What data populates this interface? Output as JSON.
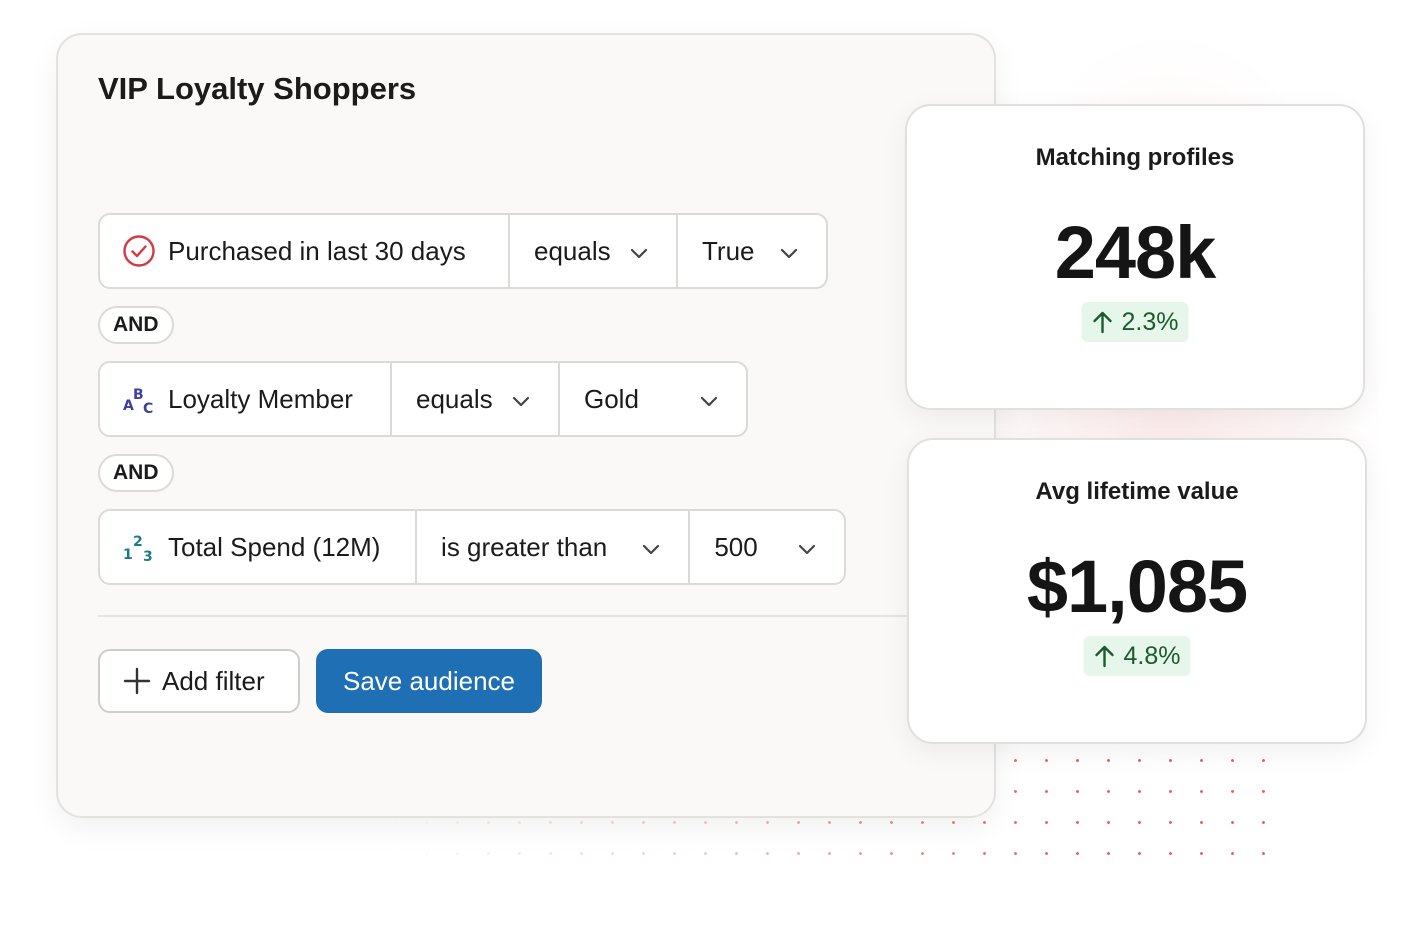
{
  "audience": {
    "title": "VIP Loyalty Shoppers",
    "filters": [
      {
        "field": "Purchased in last 30 days",
        "field_type_icon": "check-circle-icon",
        "operator": "equals",
        "value": "True"
      },
      {
        "field": "Loyalty Member",
        "field_type_icon": "text-type-icon",
        "operator": "equals",
        "value": "Gold"
      },
      {
        "field": "Total Spend (12M)",
        "field_type_icon": "number-type-icon",
        "operator": "is greater than",
        "value": "500"
      }
    ],
    "connectors": [
      "AND",
      "AND"
    ],
    "add_filter_label": "Add filter",
    "save_label": "Save audience"
  },
  "metrics": [
    {
      "title": "Matching profiles",
      "value": "248k",
      "delta": "2.3%",
      "delta_direction": "up"
    },
    {
      "title": "Avg lifetime value",
      "value": "$1,085",
      "delta": "4.8%",
      "delta_direction": "up"
    }
  ],
  "colors": {
    "accent": "#1f6fb5",
    "check_icon": "#d33a45",
    "positive_bg": "#e6f6ea",
    "positive_text": "#1d5b2e",
    "decor_dots": "#e24848"
  }
}
